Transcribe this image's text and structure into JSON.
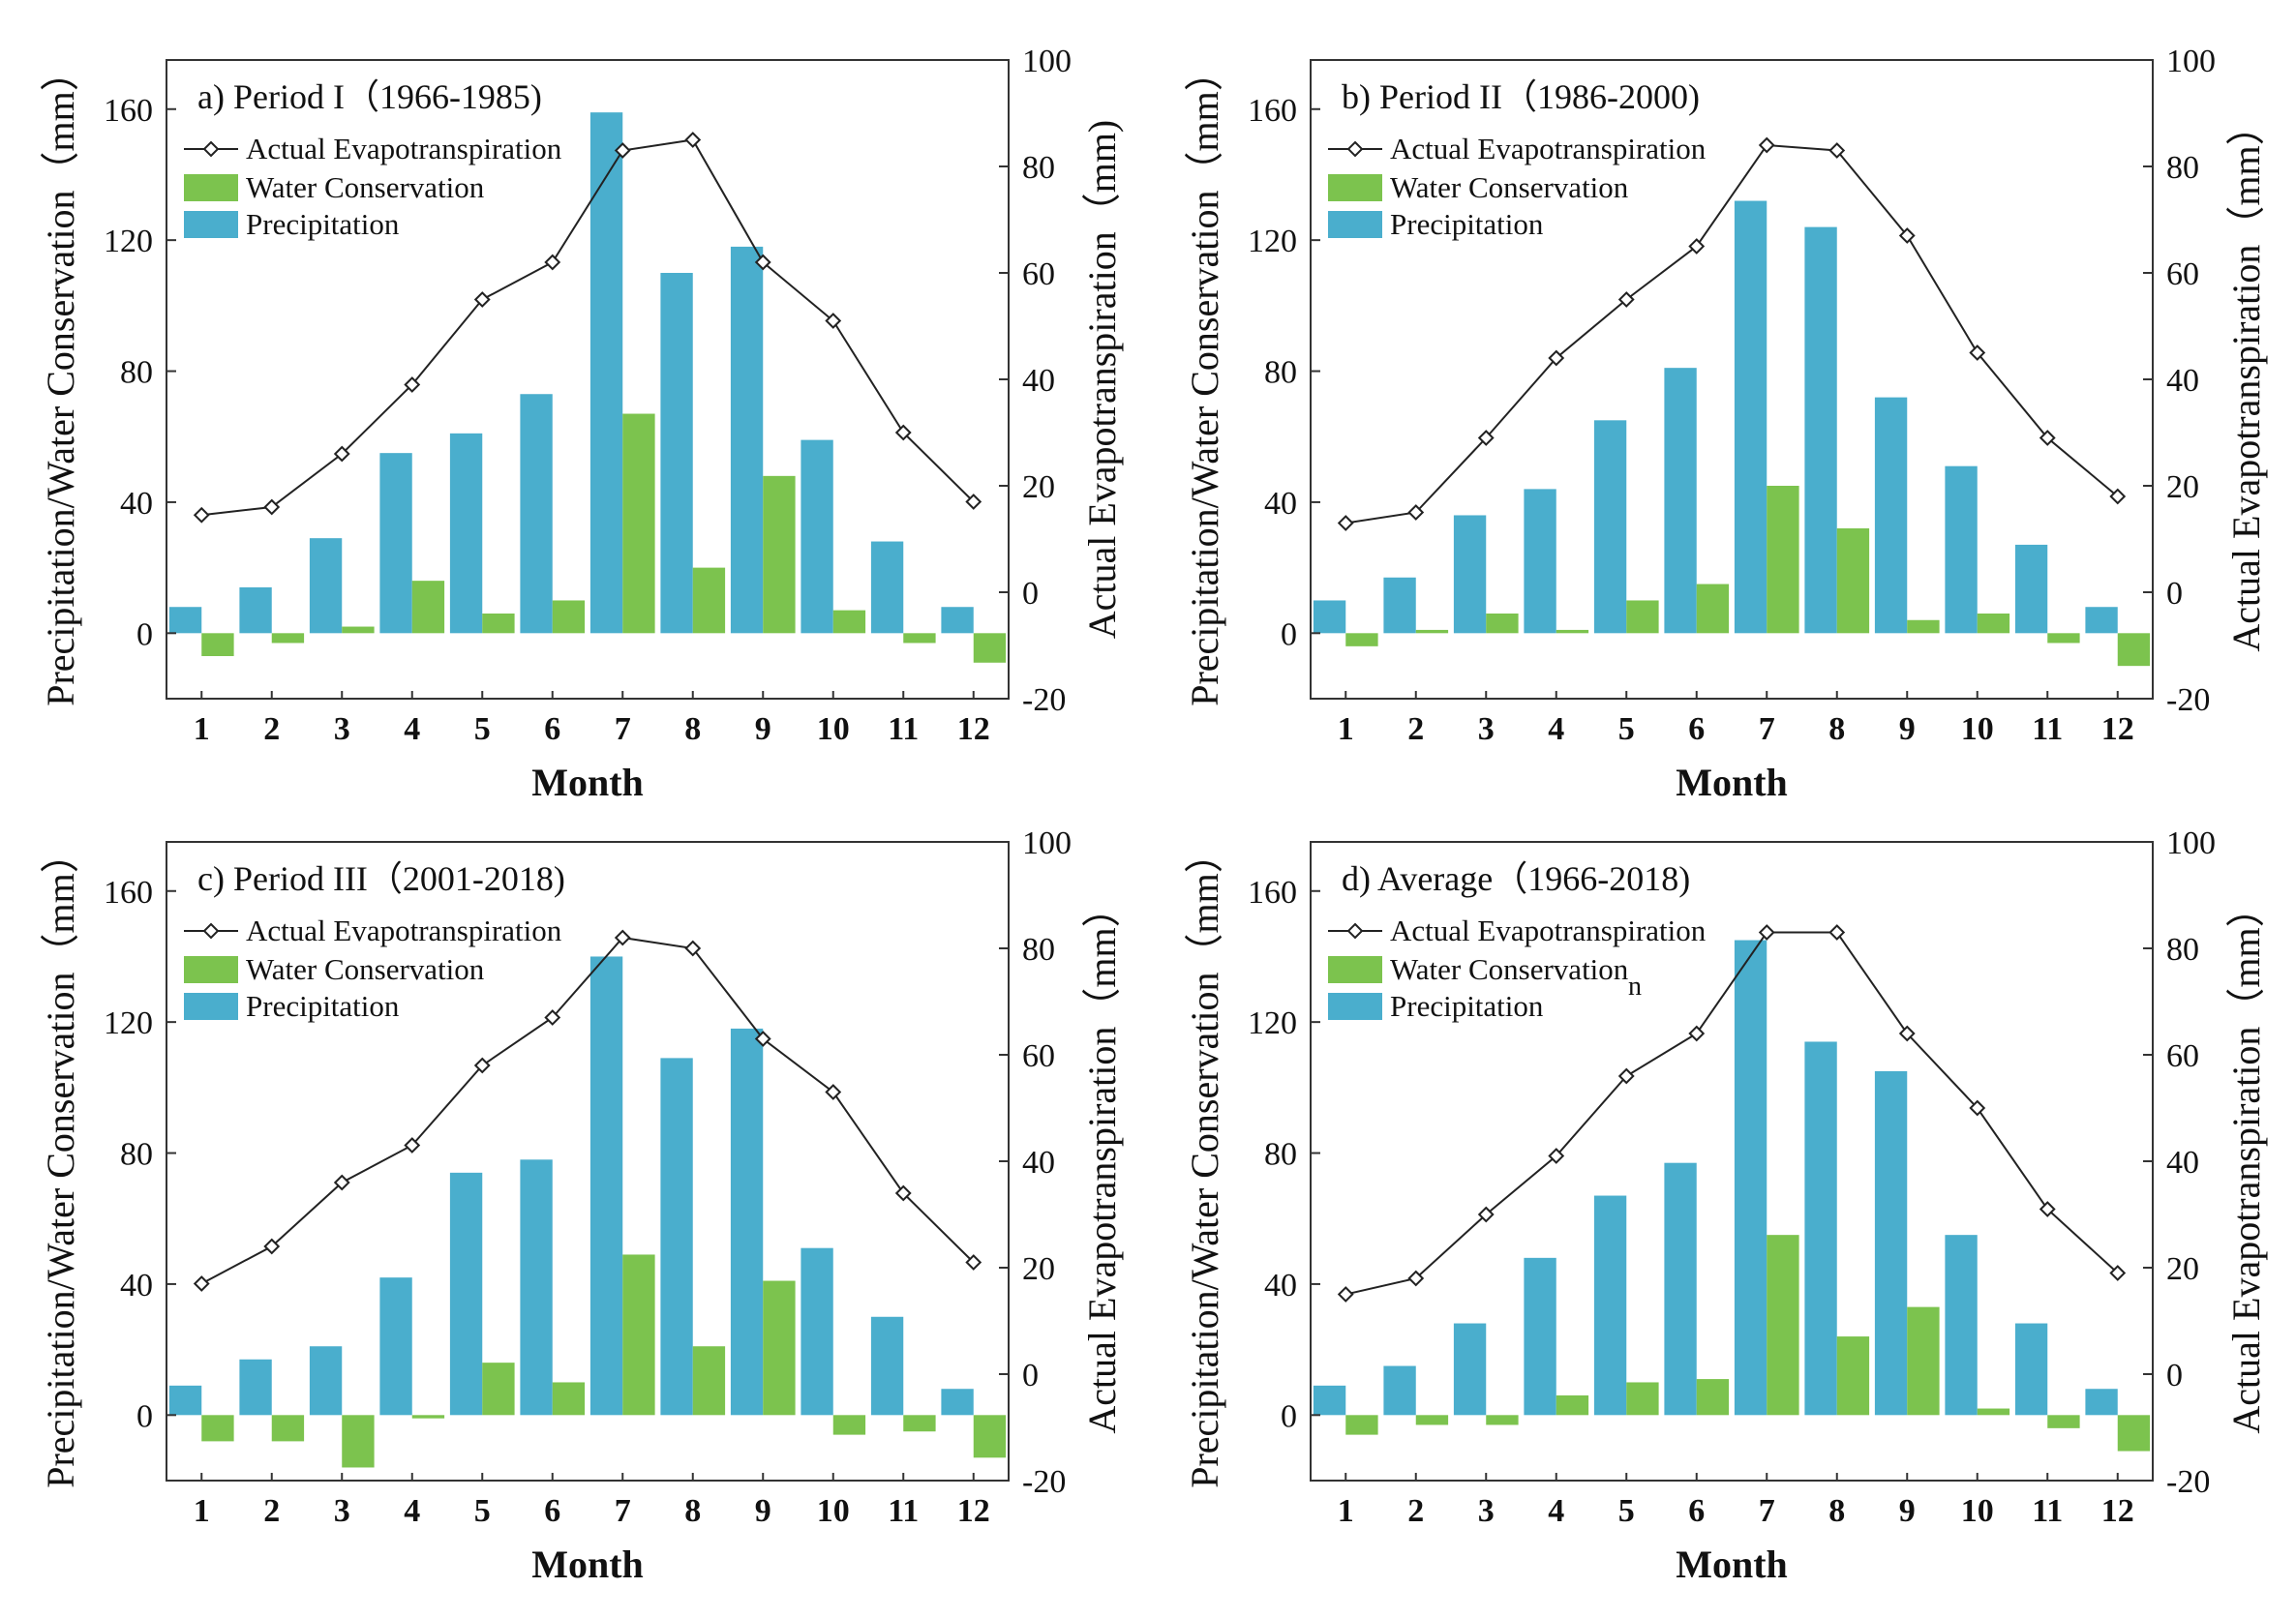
{
  "colors": {
    "precipitation": "#4aaecd",
    "water_conservation": "#7cc34e",
    "line": "#222222",
    "marker_fill": "#ffffff"
  },
  "legend": {
    "et": "Actual Evapotranspiration",
    "wc": "Water Conservation",
    "p": "Precipitation"
  },
  "chart_data": [
    {
      "type": "bar+line",
      "title": "a) Period I（1966-1985)",
      "xlabel": "Month",
      "ylabel_left": "Precipitation/Water Conservation（mm）",
      "ylabel_right": "Actual Evapotranspiration（mm)",
      "ylim_left": [
        -20,
        175
      ],
      "yticks_left": [
        0,
        40,
        80,
        120,
        160
      ],
      "ylim_right": [
        -20,
        100
      ],
      "yticks_right": [
        -20,
        0,
        20,
        40,
        60,
        80,
        100
      ],
      "categories": [
        "1",
        "2",
        "3",
        "4",
        "5",
        "6",
        "7",
        "8",
        "9",
        "10",
        "11",
        "12"
      ],
      "series": [
        {
          "name": "Precipitation",
          "axis": "left",
          "values": [
            8,
            14,
            29,
            55,
            61,
            73,
            159,
            110,
            118,
            59,
            28,
            8
          ]
        },
        {
          "name": "Water Conservation",
          "axis": "left",
          "values": [
            -7,
            -3,
            2,
            16,
            6,
            10,
            67,
            20,
            48,
            7,
            -3,
            -9
          ]
        },
        {
          "name": "Actual Evapotranspiration",
          "axis": "right",
          "values": [
            14.5,
            16,
            26,
            39,
            55,
            62,
            83,
            85,
            62,
            51,
            30,
            17
          ]
        }
      ],
      "stray_text": ""
    },
    {
      "type": "bar+line",
      "title": "b) Period II（1986-2000)",
      "xlabel": "Month",
      "ylabel_left": "Precipitation/Water Conservation（mm）",
      "ylabel_right": "Actual Evapotranspiration（mm）",
      "ylim_left": [
        -20,
        175
      ],
      "yticks_left": [
        0,
        40,
        80,
        120,
        160
      ],
      "ylim_right": [
        -20,
        100
      ],
      "yticks_right": [
        -20,
        0,
        20,
        40,
        60,
        80,
        100
      ],
      "categories": [
        "1",
        "2",
        "3",
        "4",
        "5",
        "6",
        "7",
        "8",
        "9",
        "10",
        "11",
        "12"
      ],
      "series": [
        {
          "name": "Precipitation",
          "axis": "left",
          "values": [
            10,
            17,
            36,
            44,
            65,
            81,
            132,
            124,
            72,
            51,
            27,
            8
          ]
        },
        {
          "name": "Water Conservation",
          "axis": "left",
          "values": [
            -4,
            1,
            6,
            1,
            10,
            15,
            45,
            32,
            4,
            6,
            -3,
            -10
          ]
        },
        {
          "name": "Actual Evapotranspiration",
          "axis": "right",
          "values": [
            13,
            15,
            29,
            44,
            55,
            65,
            84,
            83,
            67,
            45,
            29,
            18
          ]
        }
      ],
      "stray_text": ""
    },
    {
      "type": "bar+line",
      "title": "c) Period III（2001-2018)",
      "xlabel": "Month",
      "ylabel_left": "Precipitation/Water Conservation（mm）",
      "ylabel_right": "Actual Evapotranspiration（mm）",
      "ylim_left": [
        -20,
        175
      ],
      "yticks_left": [
        0,
        40,
        80,
        120,
        160
      ],
      "ylim_right": [
        -20,
        100
      ],
      "yticks_right": [
        -20,
        0,
        20,
        40,
        60,
        80,
        100
      ],
      "categories": [
        "1",
        "2",
        "3",
        "4",
        "5",
        "6",
        "7",
        "8",
        "9",
        "10",
        "11",
        "12"
      ],
      "series": [
        {
          "name": "Precipitation",
          "axis": "left",
          "values": [
            9,
            17,
            21,
            42,
            74,
            78,
            140,
            109,
            118,
            51,
            30,
            8
          ]
        },
        {
          "name": "Water Conservation",
          "axis": "left",
          "values": [
            -8,
            -8,
            -16,
            -1,
            16,
            10,
            49,
            21,
            41,
            -6,
            -5,
            -13
          ]
        },
        {
          "name": "Actual Evapotranspiration",
          "axis": "right",
          "values": [
            17,
            24,
            36,
            43,
            58,
            67,
            82,
            80,
            63,
            53,
            34,
            21
          ]
        }
      ],
      "stray_text": ""
    },
    {
      "type": "bar+line",
      "title": "d) Average（1966-2018)",
      "xlabel": "Month",
      "ylabel_left": "Precipitation/Water Conservation（mm）",
      "ylabel_right": "Actual Evapotranspiration（mm）",
      "ylim_left": [
        -20,
        175
      ],
      "yticks_left": [
        0,
        40,
        80,
        120,
        160
      ],
      "ylim_right": [
        -20,
        100
      ],
      "yticks_right": [
        -20,
        0,
        20,
        40,
        60,
        80,
        100
      ],
      "categories": [
        "1",
        "2",
        "3",
        "4",
        "5",
        "6",
        "7",
        "8",
        "9",
        "10",
        "11",
        "12"
      ],
      "series": [
        {
          "name": "Precipitation",
          "axis": "left",
          "values": [
            9,
            15,
            28,
            48,
            67,
            77,
            145,
            114,
            105,
            55,
            28,
            8
          ]
        },
        {
          "name": "Water Conservation",
          "axis": "left",
          "values": [
            -6,
            -3,
            -3,
            6,
            10,
            11,
            55,
            24,
            33,
            2,
            -4,
            -11
          ]
        },
        {
          "name": "Actual Evapotranspiration",
          "axis": "right",
          "values": [
            15,
            18,
            30,
            41,
            56,
            64,
            83,
            83,
            64,
            50,
            31,
            19
          ]
        }
      ],
      "stray_text": "n"
    }
  ]
}
